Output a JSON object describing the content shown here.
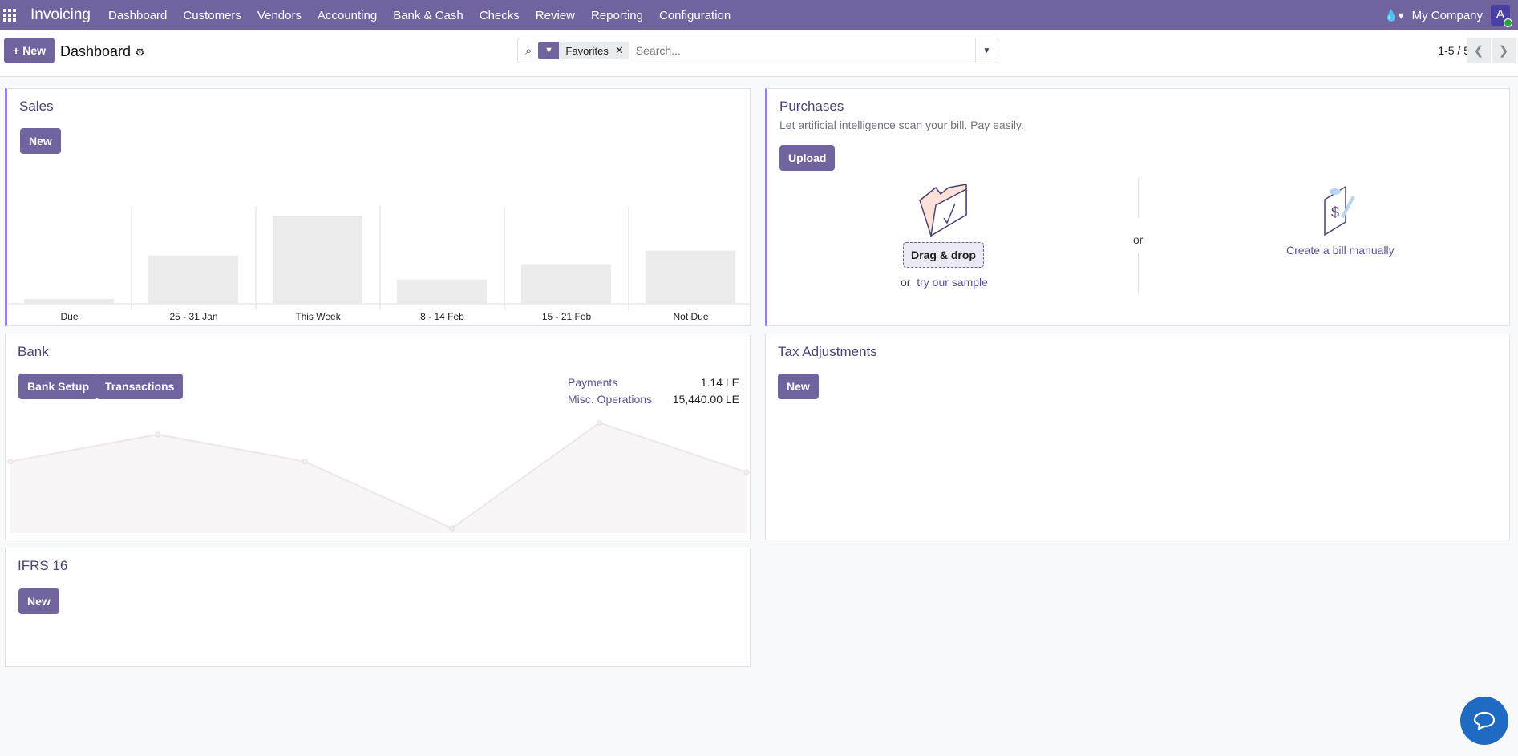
{
  "navbar": {
    "app_name": "Invoicing",
    "menu": [
      "Dashboard",
      "Customers",
      "Vendors",
      "Accounting",
      "Bank & Cash",
      "Checks",
      "Review",
      "Reporting",
      "Configuration"
    ],
    "company": "My Company",
    "avatar_letter": "A"
  },
  "control_panel": {
    "new_label": "New",
    "title": "Dashboard",
    "facet": "Favorites",
    "search_placeholder": "Search...",
    "pager": "1-5 / 5"
  },
  "sales": {
    "title": "Sales",
    "new_label": "New"
  },
  "purchases": {
    "title": "Purchases",
    "subtitle": "Let artificial intelligence scan your bill. Pay easily.",
    "upload_label": "Upload",
    "drag_drop": "Drag & drop",
    "or_prefix": "or",
    "sample_link": "try our sample",
    "or_divider": "or",
    "manual_link": "Create a bill manually"
  },
  "bank": {
    "title": "Bank",
    "setup_label": "Bank Setup",
    "transactions_label": "Transactions",
    "stats": [
      {
        "label": "Payments",
        "value": "1.14 LE"
      },
      {
        "label": "Misc. Operations",
        "value": "15,440.00 LE"
      }
    ]
  },
  "tax": {
    "title": "Tax Adjustments",
    "new_label": "New"
  },
  "ifrs": {
    "title": "IFRS 16",
    "new_label": "New"
  },
  "chart_data": [
    {
      "type": "bar",
      "title": "Sales",
      "categories": [
        "Due",
        "25 - 31 Jan",
        "This Week",
        "8 - 14 Feb",
        "15 - 21 Feb",
        "Not Due"
      ],
      "values": [
        5,
        50,
        91,
        25,
        41,
        55
      ],
      "ylim": [
        0,
        100
      ],
      "grid": false
    },
    {
      "type": "area",
      "title": "Bank",
      "x": [
        1,
        2,
        3,
        4,
        5,
        6
      ],
      "values": [
        74,
        102,
        74,
        5,
        114,
        63
      ],
      "ylim": [
        0,
        120
      ],
      "grid": false
    }
  ],
  "colors": {
    "brand": "#71639e",
    "accent": "#9b7ede",
    "bar": "#ebebeb",
    "chat": "#1f6bc4"
  }
}
